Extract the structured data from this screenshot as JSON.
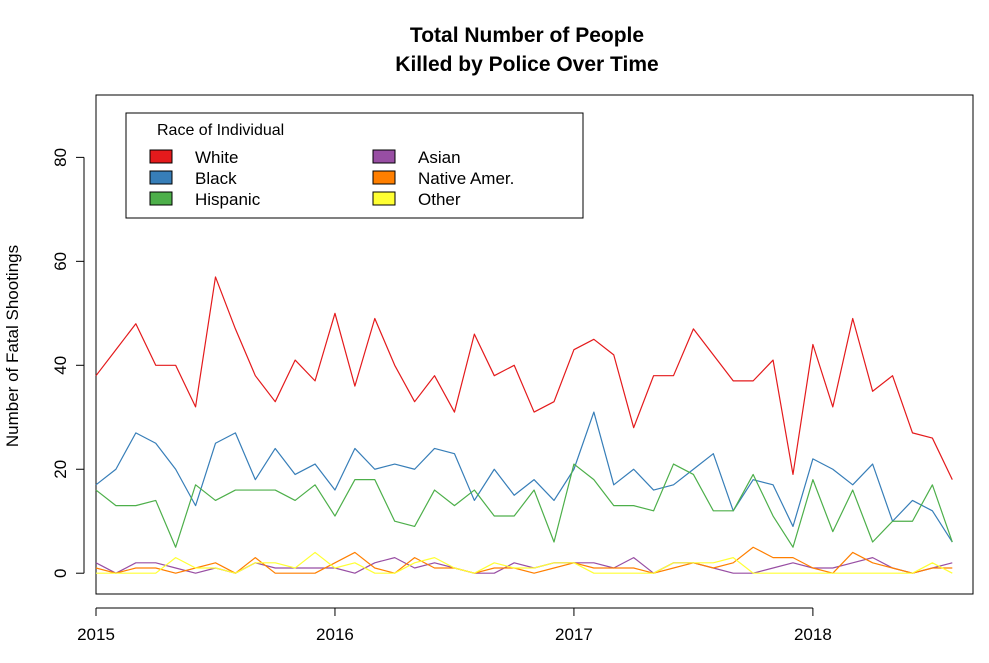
{
  "chart_data": {
    "type": "line",
    "title_line1": "Total Number of People",
    "title_line2": "Killed by Police Over Time",
    "xlabel": "",
    "ylabel": "Number of Fatal Shootings",
    "xlim": [
      2015,
      2018.67
    ],
    "ylim": [
      -4,
      92
    ],
    "x_ticks": [
      {
        "value": 2015,
        "label": "2015"
      },
      {
        "value": 2016,
        "label": "2016"
      },
      {
        "value": 2017,
        "label": "2017"
      },
      {
        "value": 2018,
        "label": "2018"
      }
    ],
    "y_ticks": [
      {
        "value": 0,
        "label": "0"
      },
      {
        "value": 20,
        "label": "20"
      },
      {
        "value": 40,
        "label": "40"
      },
      {
        "value": 60,
        "label": "60"
      },
      {
        "value": 80,
        "label": "80"
      }
    ],
    "x_start": 2015,
    "x_step_months": 1,
    "legend": {
      "title": "Race of Individual",
      "placement": "top-left",
      "columns": 2
    },
    "grid": false,
    "series": [
      {
        "name": "White",
        "color": "#e41a1c",
        "values": [
          38,
          43,
          48,
          40,
          40,
          32,
          57,
          47,
          38,
          33,
          41,
          37,
          50,
          36,
          49,
          40,
          33,
          38,
          31,
          46,
          38,
          40,
          31,
          33,
          43,
          45,
          42,
          28,
          38,
          38,
          47,
          42,
          37,
          37,
          41,
          19,
          44,
          32,
          49,
          35,
          38,
          27,
          26,
          18
        ]
      },
      {
        "name": "Black",
        "color": "#377eb8",
        "values": [
          17,
          20,
          27,
          25,
          20,
          13,
          25,
          27,
          18,
          24,
          19,
          21,
          16,
          24,
          20,
          21,
          20,
          24,
          23,
          14,
          20,
          15,
          18,
          14,
          20,
          31,
          17,
          20,
          16,
          17,
          20,
          23,
          12,
          18,
          17,
          9,
          22,
          20,
          17,
          21,
          10,
          14,
          12,
          6
        ]
      },
      {
        "name": "Hispanic",
        "color": "#4daf4a",
        "values": [
          16,
          13,
          13,
          14,
          5,
          17,
          14,
          16,
          16,
          16,
          14,
          17,
          11,
          18,
          18,
          10,
          9,
          16,
          13,
          16,
          11,
          11,
          16,
          6,
          21,
          18,
          13,
          13,
          12,
          21,
          19,
          12,
          12,
          19,
          11,
          5,
          18,
          8,
          16,
          6,
          10,
          10,
          17,
          6
        ]
      },
      {
        "name": "Asian",
        "color": "#984ea3",
        "values": [
          2,
          0,
          2,
          2,
          1,
          0,
          1,
          0,
          2,
          1,
          1,
          1,
          1,
          0,
          2,
          3,
          1,
          2,
          1,
          0,
          0,
          2,
          1,
          2,
          2,
          2,
          1,
          3,
          0,
          2,
          2,
          1,
          0,
          0,
          1,
          2,
          1,
          1,
          2,
          3,
          1,
          0,
          1,
          2
        ]
      },
      {
        "name": "Native Amer.",
        "color": "#ff7f00",
        "values": [
          1,
          0,
          1,
          1,
          0,
          1,
          2,
          0,
          3,
          0,
          0,
          0,
          2,
          4,
          1,
          0,
          3,
          1,
          1,
          0,
          1,
          1,
          0,
          1,
          2,
          1,
          1,
          1,
          0,
          1,
          2,
          1,
          2,
          5,
          3,
          3,
          1,
          0,
          4,
          2,
          1,
          0,
          1,
          1
        ]
      },
      {
        "name": "Other",
        "color": "#ffff33",
        "values": [
          0,
          0,
          0,
          0,
          3,
          1,
          1,
          0,
          2,
          2,
          1,
          4,
          1,
          2,
          0,
          0,
          2,
          3,
          1,
          0,
          2,
          1,
          1,
          2,
          2,
          0,
          0,
          0,
          0,
          2,
          2,
          2,
          3,
          0,
          0,
          0,
          0,
          0,
          0,
          0,
          0,
          0,
          2,
          0
        ]
      }
    ]
  }
}
